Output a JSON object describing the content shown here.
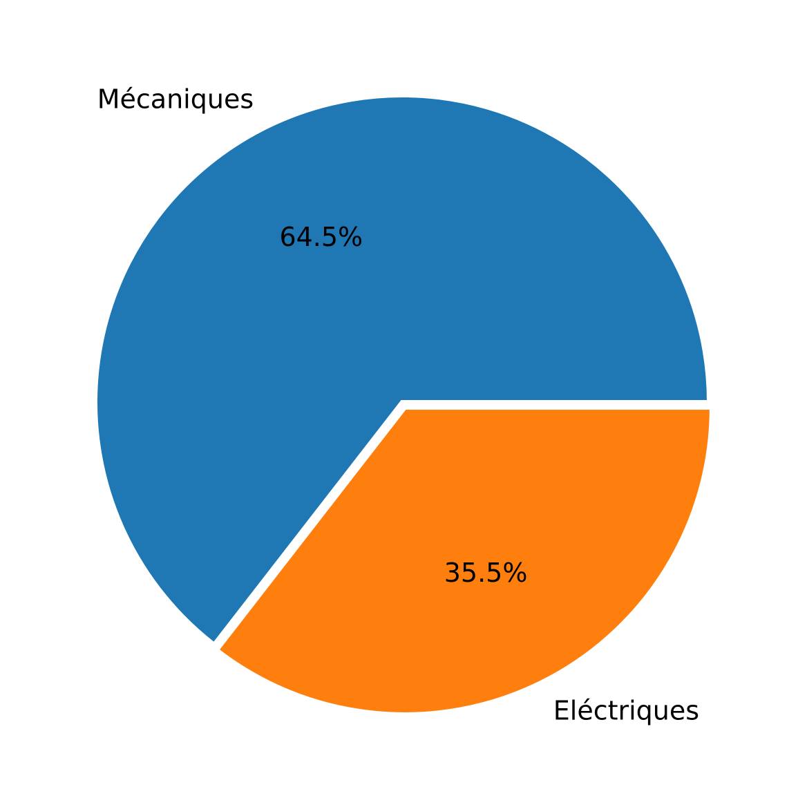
{
  "chart_data": {
    "type": "pie",
    "title": "",
    "categories": [
      "Mécaniques",
      "Eléctriques"
    ],
    "values": [
      64.5,
      35.5
    ],
    "percent_labels": [
      "64.5%",
      "35.5%"
    ],
    "colors": [
      "#1f77b4",
      "#ff7f0e"
    ],
    "start_angle_deg": 0,
    "direction": "counterclockwise",
    "exploded_slice": "Eléctriques",
    "legend": "none"
  }
}
